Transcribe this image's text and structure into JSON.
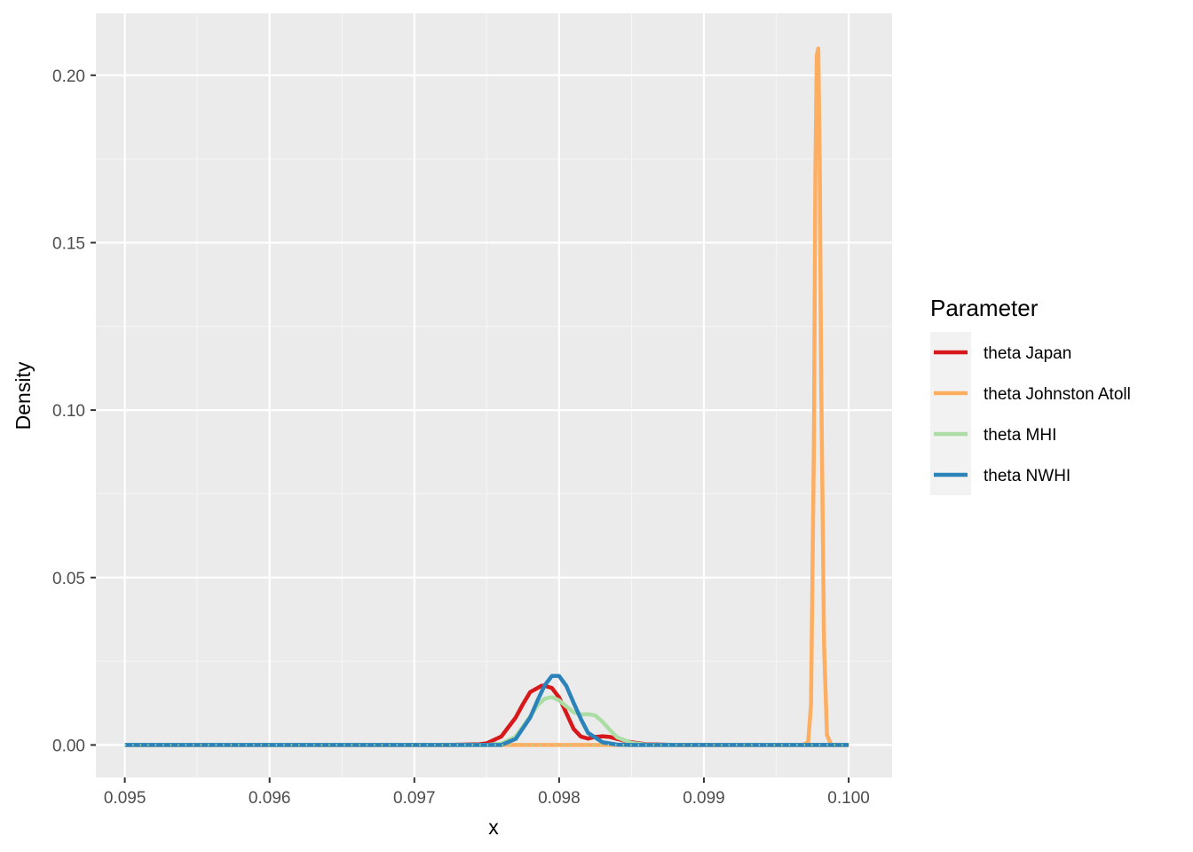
{
  "chart_data": {
    "type": "line",
    "title": "",
    "xlabel": "x",
    "ylabel": "Density",
    "xlim": [
      0.0948,
      0.1003
    ],
    "ylim": [
      -0.0097,
      0.2185
    ],
    "x_ticks": [
      0.095,
      0.096,
      0.097,
      0.098,
      0.099,
      0.1
    ],
    "x_tick_labels": [
      "0.095",
      "0.096",
      "0.097",
      "0.098",
      "0.099",
      "0.100"
    ],
    "y_ticks": [
      0.0,
      0.05,
      0.1,
      0.15,
      0.2
    ],
    "y_tick_labels": [
      "0.00",
      "0.05",
      "0.10",
      "0.15",
      "0.20"
    ],
    "grid": true,
    "legend": {
      "title": "Parameter",
      "position": "right"
    },
    "series": [
      {
        "name": "theta Japan",
        "color": "#d7191c",
        "points": [
          [
            0.095,
            0
          ],
          [
            0.0972,
            0
          ],
          [
            0.09745,
            0.0002
          ],
          [
            0.0975,
            0.0005
          ],
          [
            0.0976,
            0.0025
          ],
          [
            0.0977,
            0.0082
          ],
          [
            0.09775,
            0.0122
          ],
          [
            0.0978,
            0.0158
          ],
          [
            0.09788,
            0.0177
          ],
          [
            0.0979,
            0.0177
          ],
          [
            0.09795,
            0.017
          ],
          [
            0.098,
            0.0142
          ],
          [
            0.09805,
            0.0095
          ],
          [
            0.0981,
            0.0048
          ],
          [
            0.09815,
            0.0025
          ],
          [
            0.0982,
            0.0019
          ],
          [
            0.09825,
            0.0024
          ],
          [
            0.0983,
            0.0026
          ],
          [
            0.09835,
            0.0024
          ],
          [
            0.0984,
            0.0018
          ],
          [
            0.0985,
            0.0008
          ],
          [
            0.0986,
            0.0002
          ],
          [
            0.0988,
            0
          ],
          [
            0.1,
            0
          ]
        ]
      },
      {
        "name": "theta Johnston Atoll",
        "color": "#fdae61",
        "points": [
          [
            0.095,
            0
          ],
          [
            0.09968,
            0
          ],
          [
            0.09972,
            0.0008
          ],
          [
            0.09974,
            0.012
          ],
          [
            0.09976,
            0.09
          ],
          [
            0.09977,
            0.17
          ],
          [
            0.09978,
            0.206
          ],
          [
            0.09979,
            0.208
          ],
          [
            0.0998,
            0.175
          ],
          [
            0.09981,
            0.11
          ],
          [
            0.09983,
            0.03
          ],
          [
            0.09985,
            0.003
          ],
          [
            0.09988,
            0
          ],
          [
            0.1,
            0
          ]
        ]
      },
      {
        "name": "theta MHI",
        "color": "#abdda4",
        "points": [
          [
            0.095,
            0
          ],
          [
            0.0975,
            0
          ],
          [
            0.0976,
            0.0004
          ],
          [
            0.0977,
            0.0025
          ],
          [
            0.0978,
            0.0085
          ],
          [
            0.09785,
            0.0118
          ],
          [
            0.0979,
            0.0138
          ],
          [
            0.09795,
            0.0143
          ],
          [
            0.098,
            0.0133
          ],
          [
            0.09805,
            0.0115
          ],
          [
            0.0981,
            0.0098
          ],
          [
            0.09815,
            0.0091
          ],
          [
            0.0982,
            0.0092
          ],
          [
            0.09825,
            0.0088
          ],
          [
            0.0983,
            0.0069
          ],
          [
            0.09835,
            0.0045
          ],
          [
            0.0984,
            0.0023
          ],
          [
            0.0985,
            0.0006
          ],
          [
            0.0986,
            0.0001
          ],
          [
            0.0987,
            0
          ],
          [
            0.1,
            0
          ]
        ]
      },
      {
        "name": "theta NWHI",
        "color": "#2b83ba",
        "points": [
          [
            0.095,
            0
          ],
          [
            0.0976,
            0
          ],
          [
            0.0977,
            0.0018
          ],
          [
            0.0978,
            0.0082
          ],
          [
            0.09785,
            0.0132
          ],
          [
            0.0979,
            0.0178
          ],
          [
            0.09795,
            0.0206
          ],
          [
            0.098,
            0.0206
          ],
          [
            0.09805,
            0.0176
          ],
          [
            0.0981,
            0.0126
          ],
          [
            0.09815,
            0.0078
          ],
          [
            0.0982,
            0.0036
          ],
          [
            0.0983,
            0.0008
          ],
          [
            0.0984,
            0.0001
          ],
          [
            0.0985,
            0
          ],
          [
            0.1,
            0
          ]
        ]
      }
    ]
  }
}
